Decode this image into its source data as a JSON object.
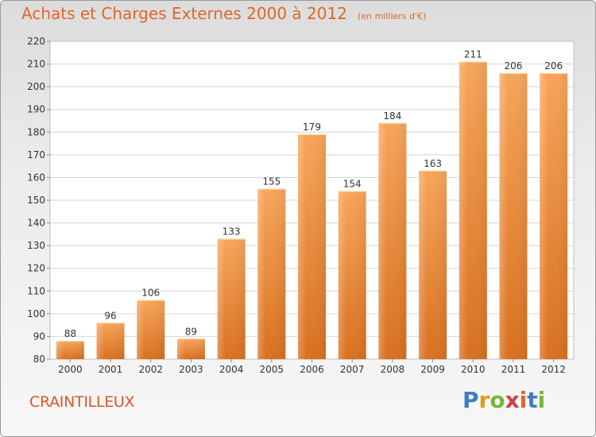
{
  "title": "Achats et Charges Externes 2000 à 2012",
  "unit": "(en milliers d'€)",
  "city": "CRAINTILLEUX",
  "logo": {
    "p": "P",
    "r": "r",
    "o": "o",
    "x": "x",
    "i1": "i",
    "t": "t",
    "i2": "i"
  },
  "colors": {
    "bar_light": "#f7a55a",
    "bar_dark": "#d9701f",
    "title": "#e0662b"
  },
  "chart_data": {
    "type": "bar",
    "title": "Achats et Charges Externes 2000 à 2012",
    "subtitle": "(en milliers d'€)",
    "categories": [
      "2000",
      "2001",
      "2002",
      "2003",
      "2004",
      "2005",
      "2006",
      "2007",
      "2008",
      "2009",
      "2010",
      "2011",
      "2012"
    ],
    "values": [
      88,
      96,
      106,
      89,
      133,
      155,
      179,
      154,
      184,
      163,
      211,
      206,
      206
    ],
    "ylim": [
      80,
      220
    ],
    "yticks": [
      80,
      90,
      100,
      110,
      120,
      130,
      140,
      150,
      160,
      170,
      180,
      190,
      200,
      210,
      220
    ],
    "grid": true,
    "xlabel": "",
    "ylabel": ""
  }
}
